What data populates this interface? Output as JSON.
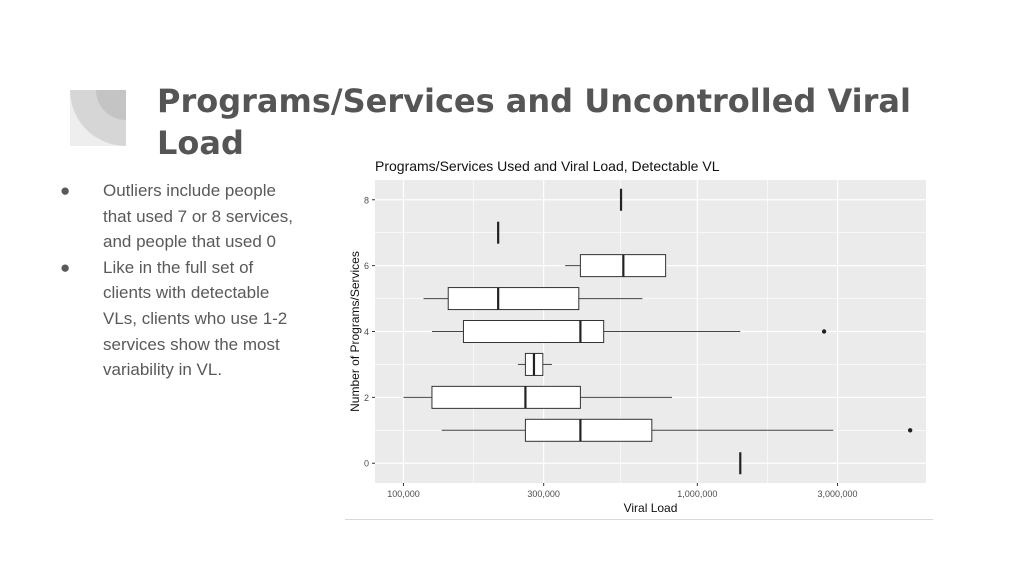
{
  "slide": {
    "title": "Programs/Services and Uncontrolled Viral Load",
    "bullets": [
      "Outliers include people that used 7 or 8 services, and people that used 0",
      "Like in the full set of clients with detectable VLs, clients who use 1-2 services show the most variability in VL."
    ],
    "bullet_glyph": "●"
  },
  "chart_data": {
    "type": "boxplot",
    "title": "Programs/Services Used and Viral Load, Detectable VL",
    "xlabel": "Viral Load",
    "ylabel": "Number of Programs/Services",
    "x_scale": "log10",
    "x_ticks": [
      100000,
      300000,
      1000000,
      3000000
    ],
    "x_tick_labels": [
      "100,000",
      "300,000",
      "1,000,000",
      "3,000,000"
    ],
    "xlim": [
      80000,
      6000000
    ],
    "y_ticks": [
      0,
      2,
      4,
      6,
      8
    ],
    "ylim": [
      -0.6,
      8.6
    ],
    "panel_color": "#ebebeb",
    "grid_color": "#ffffff",
    "boxes": [
      {
        "group": 0,
        "min": 1400000,
        "q1": 1400000,
        "median": 1400000,
        "q3": 1400000,
        "max": 1400000,
        "outliers": []
      },
      {
        "group": 1,
        "min": 135000,
        "q1": 260000,
        "median": 400000,
        "q3": 700000,
        "max": 2900000,
        "outliers": [
          5300000
        ]
      },
      {
        "group": 2,
        "min": 100000,
        "q1": 125000,
        "median": 260000,
        "q3": 400000,
        "max": 820000,
        "outliers": []
      },
      {
        "group": 3,
        "min": 245000,
        "q1": 260000,
        "median": 278000,
        "q3": 298000,
        "max": 320000,
        "outliers": []
      },
      {
        "group": 4,
        "min": 125000,
        "q1": 160000,
        "median": 400000,
        "q3": 480000,
        "max": 1400000,
        "outliers": [
          2700000
        ]
      },
      {
        "group": 5,
        "min": 117000,
        "q1": 142000,
        "median": 210000,
        "q3": 395000,
        "max": 650000,
        "outliers": []
      },
      {
        "group": 6,
        "min": 355000,
        "q1": 400000,
        "median": 560000,
        "q3": 780000,
        "max": 780000,
        "outliers": []
      },
      {
        "group": 7,
        "min": 210000,
        "q1": 210000,
        "median": 210000,
        "q3": 210000,
        "max": 210000,
        "outliers": []
      },
      {
        "group": 8,
        "min": 550000,
        "q1": 550000,
        "median": 550000,
        "q3": 550000,
        "max": 550000,
        "outliers": []
      }
    ]
  }
}
